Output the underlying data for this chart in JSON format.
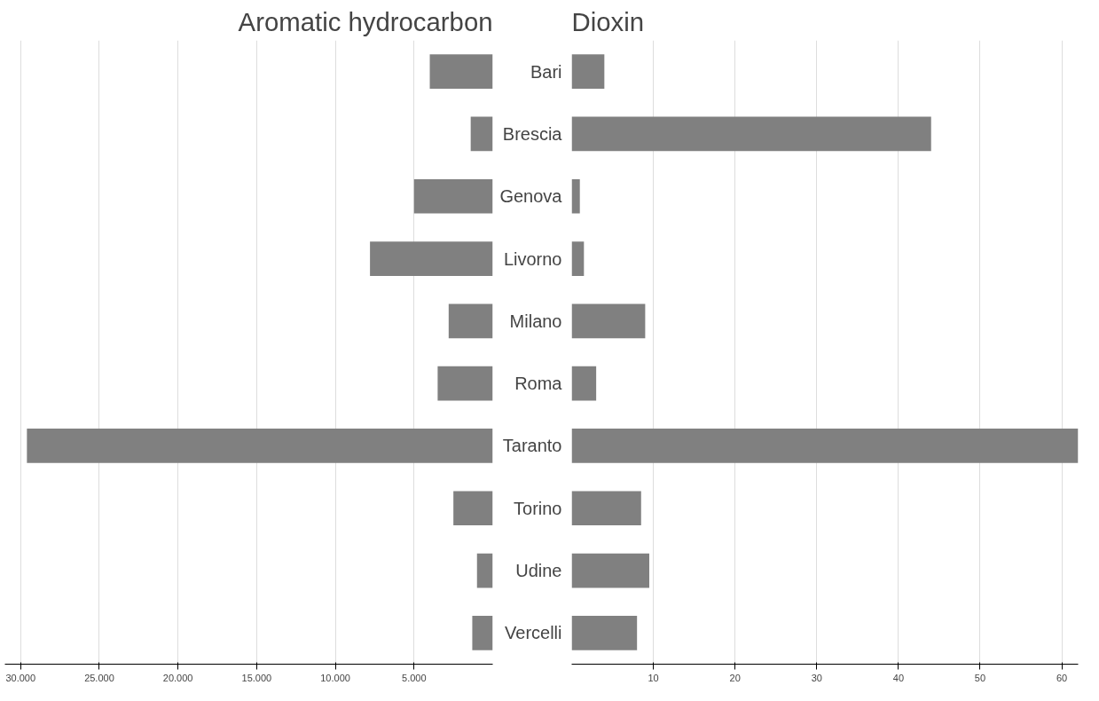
{
  "chart_data": [
    {
      "type": "bar",
      "orientation": "horizontal",
      "title": "Aromatic hydrocarbon",
      "series": [
        {
          "color": "#808080",
          "values": [
            4000,
            1400,
            5000,
            7800,
            2800,
            3500,
            29600,
            2500,
            1000,
            1300
          ]
        }
      ],
      "xlim": [
        31000,
        0
      ],
      "xticks": [
        {
          "value": 30000,
          "label": "30.000"
        },
        {
          "value": 25000,
          "label": "25.000"
        },
        {
          "value": 20000,
          "label": "20.000"
        },
        {
          "value": 15000,
          "label": "15.000"
        },
        {
          "value": 10000,
          "label": "10.000"
        },
        {
          "value": 5000,
          "label": "5.000"
        }
      ],
      "grid": "x",
      "tick_labels": "x"
    },
    {
      "type": "bar",
      "orientation": "horizontal",
      "title": "Dioxin",
      "categories": [
        "Bari",
        "Brescia",
        "Genova",
        "Livorno",
        "Milano",
        "Roma",
        "Taranto",
        "Torino",
        "Udine",
        "Vercelli"
      ],
      "series": [
        {
          "color": "#808080",
          "values": [
            4,
            44,
            1,
            1.5,
            9,
            3,
            62,
            8.5,
            9.5,
            8
          ]
        }
      ],
      "xlim": [
        0,
        62
      ],
      "xticks": [
        10,
        20,
        30,
        40,
        50,
        60
      ],
      "grid": "x"
    }
  ]
}
